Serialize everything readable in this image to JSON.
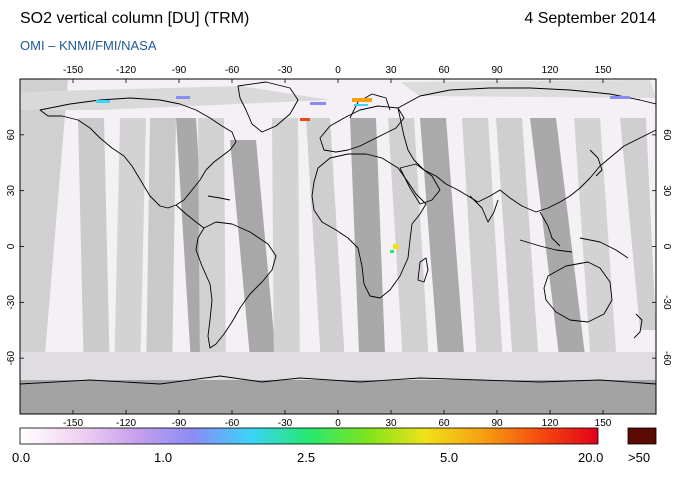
{
  "header": {
    "title": "SO2 vertical column [DU] (TRM)",
    "date": "4 September 2014",
    "credit": "OMI  –  KNMI/FMI/NASA"
  },
  "map": {
    "projection": "equirectangular",
    "lon_range": [
      -180,
      180
    ],
    "lat_range": [
      -90,
      90
    ],
    "lon_ticks": [
      -150,
      -120,
      -90,
      -60,
      -30,
      0,
      30,
      60,
      90,
      120,
      150
    ],
    "lat_ticks": [
      60,
      30,
      0,
      -30,
      -60
    ],
    "background_color": "#f4f0f6",
    "swath_light_color": "#d0d0d0",
    "swath_dark_color": "#a8a8a8",
    "coastline_color": "#000000"
  },
  "colorbar": {
    "labels": [
      "0.0",
      "1.0",
      "2.5",
      "5.0",
      "20.0"
    ],
    "overflow_label": ">50",
    "gradient_colors": [
      "#ffffff",
      "#f1d3f2",
      "#c7a0ee",
      "#8a8cf5",
      "#3ad4f7",
      "#26e86f",
      "#7ce41c",
      "#f0e11a",
      "#f5a111",
      "#f54a0e",
      "#e3001a"
    ],
    "overflow_color": "#5a0a00"
  }
}
